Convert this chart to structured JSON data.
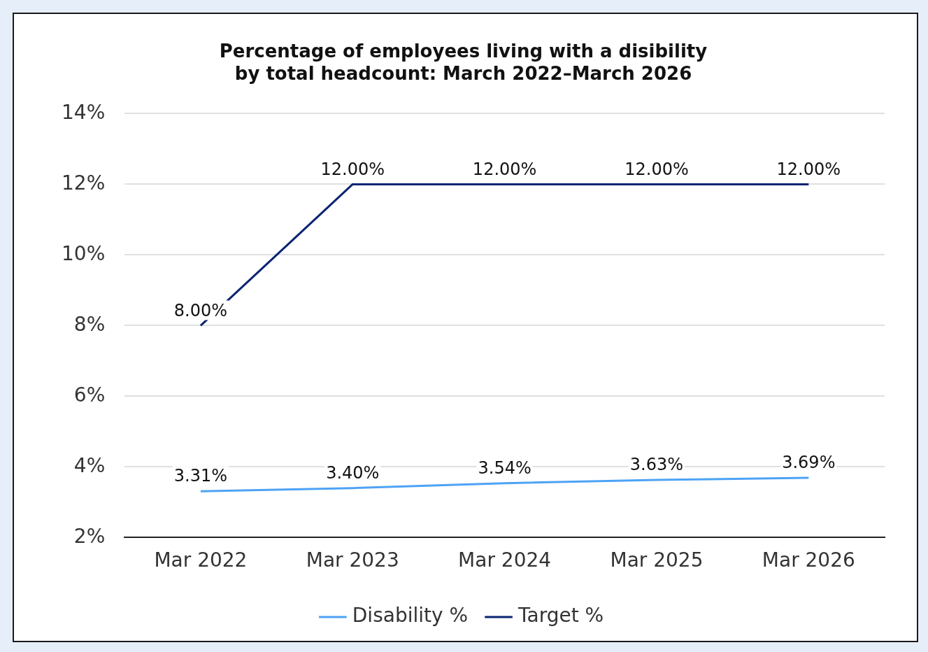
{
  "chart_data": {
    "type": "line",
    "title": "Percentage of employees living with a disibility by total headcount: March 2022–March 2026",
    "categories": [
      "Mar 2022",
      "Mar 2023",
      "Mar 2024",
      "Mar 2025",
      "Mar 2026"
    ],
    "series": [
      {
        "name": "Disability %",
        "color": "#4da3f5",
        "values": [
          3.31,
          3.4,
          3.54,
          3.63,
          3.69
        ],
        "value_labels": [
          "3.31%",
          "3.40%",
          "3.54%",
          "3.63%",
          "3.69%"
        ]
      },
      {
        "name": "Target %",
        "color": "#0a2472",
        "values": [
          8.0,
          12.0,
          12.0,
          12.0,
          12.0
        ],
        "value_labels": [
          "8.00%",
          "12.00%",
          "12.00%",
          "12.00%",
          "12.00%"
        ]
      }
    ],
    "ylim": [
      2,
      14
    ],
    "yticks": [
      {
        "value": 2,
        "label": "2%"
      },
      {
        "value": 4,
        "label": "4%"
      },
      {
        "value": 6,
        "label": "6%"
      },
      {
        "value": 8,
        "label": "8%"
      },
      {
        "value": 10,
        "label": "10%"
      },
      {
        "value": 12,
        "label": "12%"
      },
      {
        "value": 14,
        "label": "14%"
      }
    ],
    "grid": "y",
    "legend": "bottom",
    "marker": "none",
    "line_style": "solid"
  }
}
